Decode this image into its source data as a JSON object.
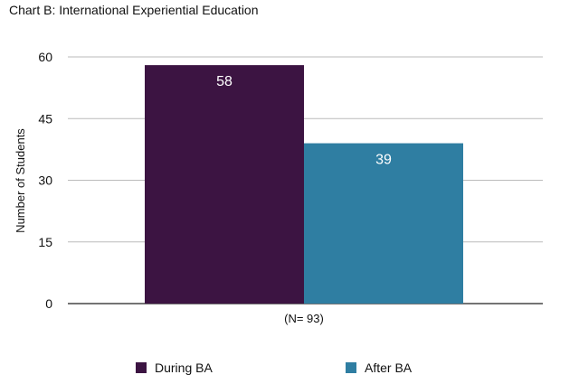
{
  "chart_data": {
    "type": "bar",
    "title": "Chart B: International Experiential Education",
    "xlabel": "",
    "ylabel": "Number of Students",
    "categories": [
      "(N= 93)"
    ],
    "series": [
      {
        "name": "During BA",
        "values": [
          58
        ],
        "color": "#3c1442"
      },
      {
        "name": "After BA",
        "values": [
          39
        ],
        "color": "#2f7ea2"
      }
    ],
    "ylim": [
      0,
      60
    ],
    "yticks": [
      0,
      15,
      30,
      45,
      60
    ],
    "grid": true,
    "legend_position": "bottom",
    "data_label_color": "#ffffff"
  }
}
